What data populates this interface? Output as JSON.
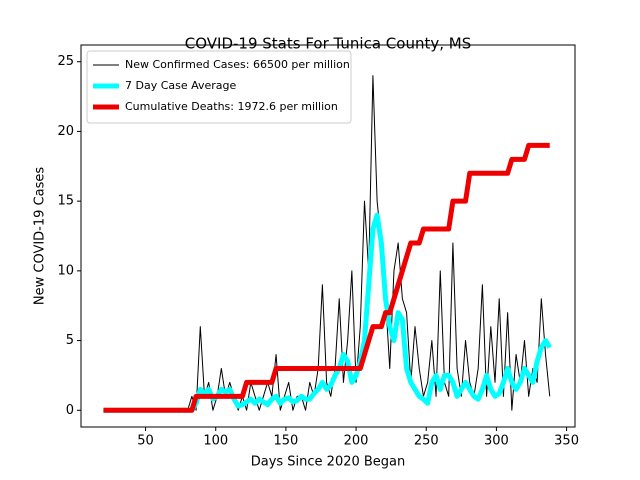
{
  "chart_data": {
    "type": "line",
    "title": "COVID-19 Stats For Tunica County, MS",
    "xlabel": "Days Since 2020 Began",
    "ylabel": "New COVID-19 Cases",
    "x": [
      20,
      23,
      26,
      29,
      32,
      35,
      38,
      41,
      44,
      47,
      50,
      53,
      56,
      59,
      62,
      65,
      68,
      71,
      74,
      77,
      80,
      83,
      86,
      89,
      92,
      95,
      98,
      101,
      104,
      107,
      110,
      113,
      116,
      119,
      122,
      125,
      128,
      131,
      134,
      137,
      140,
      143,
      146,
      149,
      152,
      155,
      158,
      161,
      164,
      167,
      170,
      173,
      176,
      179,
      182,
      185,
      188,
      191,
      194,
      197,
      200,
      203,
      206,
      209,
      212,
      215,
      218,
      221,
      224,
      227,
      230,
      233,
      236,
      239,
      242,
      245,
      248,
      251,
      254,
      257,
      260,
      263,
      266,
      269,
      272,
      275,
      278,
      281,
      284,
      287,
      290,
      293,
      296,
      299,
      302,
      305,
      308,
      311,
      314,
      317,
      320,
      323,
      326,
      329,
      332,
      335,
      338
    ],
    "series": [
      {
        "name": "New Confirmed Cases: 66500 per million",
        "color": "#000000",
        "width": 1,
        "values": [
          0,
          0,
          0,
          0,
          0,
          0,
          0,
          0,
          0,
          0,
          0,
          0,
          0,
          0,
          0,
          0,
          0,
          0,
          0,
          0,
          0,
          1,
          0,
          6,
          1,
          2,
          0,
          1,
          3,
          1,
          2,
          1,
          0,
          1,
          0,
          2,
          1,
          0,
          1,
          2,
          1,
          4,
          0,
          1,
          2,
          0,
          1,
          1,
          0,
          2,
          1,
          3,
          9,
          2,
          1,
          3,
          8,
          2,
          5,
          10,
          2,
          6,
          15,
          10,
          24,
          15,
          12,
          8,
          3,
          10,
          12,
          8,
          7,
          2,
          6,
          3,
          1,
          2,
          5,
          1,
          10,
          2,
          1,
          12,
          3,
          1,
          5,
          2,
          1,
          3,
          9,
          1,
          6,
          2,
          8,
          1,
          7,
          0,
          4,
          2,
          5,
          1,
          3,
          2,
          8,
          4,
          1
        ]
      },
      {
        "name": "7 Day Case Average",
        "color": "#00ffff",
        "width": 5,
        "values": [
          0,
          0,
          0,
          0,
          0,
          0,
          0,
          0,
          0,
          0,
          0,
          0,
          0,
          0,
          0,
          0,
          0,
          0,
          0,
          0,
          0,
          0,
          0.5,
          1.5,
          1.2,
          1.5,
          0.8,
          1,
          1.5,
          1.3,
          1.5,
          0.8,
          0.3,
          0.4,
          0.6,
          0.8,
          0.5,
          0.8,
          0.6,
          0.4,
          0.8,
          1,
          0.5,
          0.8,
          0.9,
          0.6,
          0.7,
          1,
          0.8,
          0.8,
          1.2,
          1.5,
          2,
          1.5,
          1.8,
          2.5,
          3,
          4,
          3.5,
          2,
          2.5,
          3.5,
          5,
          9,
          13,
          14,
          12,
          8,
          6,
          5,
          7,
          6.5,
          3,
          2,
          1.5,
          1,
          0.8,
          0.5,
          2,
          2.5,
          1.5,
          2.5,
          2.5,
          2,
          1,
          1.5,
          2,
          1.5,
          1,
          0.8,
          1.5,
          2.5,
          1.5,
          1,
          1.2,
          2,
          3,
          2,
          1.5,
          2,
          3,
          2.5,
          2,
          3.5,
          4.5,
          5,
          4.5
        ]
      },
      {
        "name": "Cumulative Deaths: 1972.6 per million",
        "color": "#ee0000",
        "width": 5,
        "values": [
          0,
          0,
          0,
          0,
          0,
          0,
          0,
          0,
          0,
          0,
          0,
          0,
          0,
          0,
          0,
          0,
          0,
          0,
          0,
          0,
          0,
          0,
          1,
          1,
          1,
          1,
          1,
          1,
          1,
          1,
          1,
          1,
          1,
          1,
          2,
          2,
          2,
          2,
          2,
          2,
          2,
          3,
          3,
          3,
          3,
          3,
          3,
          3,
          3,
          3,
          3,
          3,
          3,
          3,
          3,
          3,
          3,
          3,
          3,
          3,
          3,
          3,
          4,
          5,
          6,
          6,
          6,
          7,
          7,
          8,
          9,
          10,
          11,
          12,
          12,
          12,
          13,
          13,
          13,
          13,
          13,
          13,
          13,
          15,
          15,
          15,
          15,
          17,
          17,
          17,
          17,
          17,
          17,
          17,
          17,
          17,
          17,
          18,
          18,
          18,
          18,
          19,
          19,
          19,
          19,
          19,
          19
        ]
      }
    ],
    "xlim": [
      4,
      356
    ],
    "ylim": [
      -1.2,
      26.2
    ],
    "xticks": [
      50,
      100,
      150,
      200,
      250,
      300,
      350
    ],
    "yticks": [
      0,
      5,
      10,
      15,
      20,
      25
    ],
    "legend": "upper left"
  }
}
